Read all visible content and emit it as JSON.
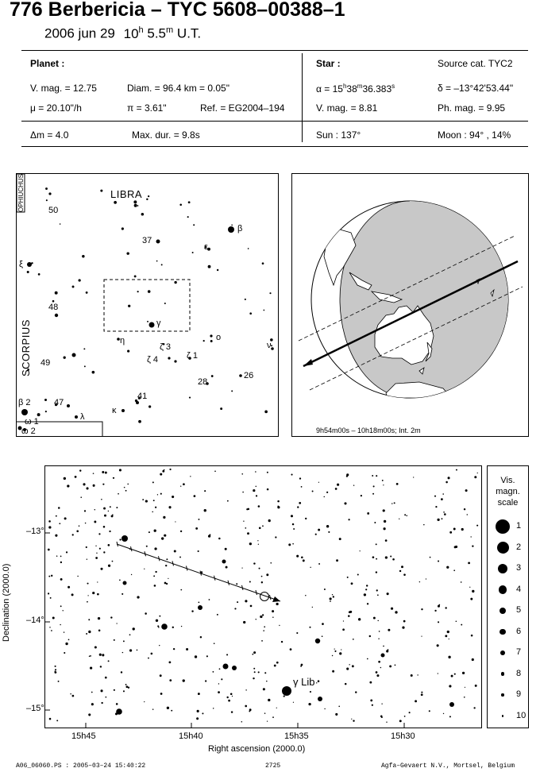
{
  "header": {
    "title": "776 Berbericia  –  TYC 5608–00388–1",
    "date": "2006 jun 29",
    "time_h": "10",
    "time_m": " 5.5",
    "time_suffix": " U.T.",
    "planet_label": "Planet :",
    "vmag": "V. mag. = 12.75",
    "diam": "Diam. = 96.4 km = 0.05\"",
    "mu": "μ = 20.10\"/h",
    "pi": "π =  3.61\"",
    "ref": "Ref. = EG2004–194",
    "dm": "Δm = 4.0",
    "maxdur": "Max. dur. = 9.8s",
    "star_label": "Star :",
    "source": "Source cat.  TYC2",
    "alpha": "α = 15h38m36.383s",
    "delta": "δ = –13°42'53.44\"",
    "star_vmag": "V. mag. =  8.81",
    "phmag": "Ph. mag. =  9.95",
    "sun": "Sun : 137°",
    "moon": "Moon :  94° , 14%"
  },
  "chart_panel": {
    "constellations": [
      "LIBRA",
      "SCORPIUS",
      "OPHIUCHUS"
    ],
    "star_labels": [
      "50",
      "β",
      "37",
      "ε",
      "ξ",
      "48",
      "γ",
      "η",
      "o",
      "ν",
      "ζ 3",
      "ζ 1",
      "49",
      "ζ 4",
      "28",
      "26",
      "41",
      "47",
      "κ",
      "λ",
      "β 2",
      "ω 1",
      "ω 2"
    ]
  },
  "globe_panel": {
    "caption": "9h54m00s – 10h18m00s; Int.  2m"
  },
  "detail_panel": {
    "ylabel": "Declination (2000.0)",
    "xlabel": "Right ascension (2000.0)",
    "yticks": [
      "–13°",
      "–14°",
      "–15°"
    ],
    "xticks": [
      "15h45",
      "15h40",
      "15h35",
      "15h30"
    ],
    "star_label": "γ Lib"
  },
  "scale": {
    "title": [
      "Vis.",
      "magn.",
      "scale"
    ],
    "items": [
      "1",
      "2",
      "3",
      "4",
      "5",
      "6",
      "7",
      "8",
      "9",
      "10"
    ]
  },
  "footer": {
    "left": "A06_06060.PS : 2005–03–24 15:40:22",
    "center": "2725",
    "right": "Agfa–Gevaert N.V., Mortsel, Belgium"
  }
}
